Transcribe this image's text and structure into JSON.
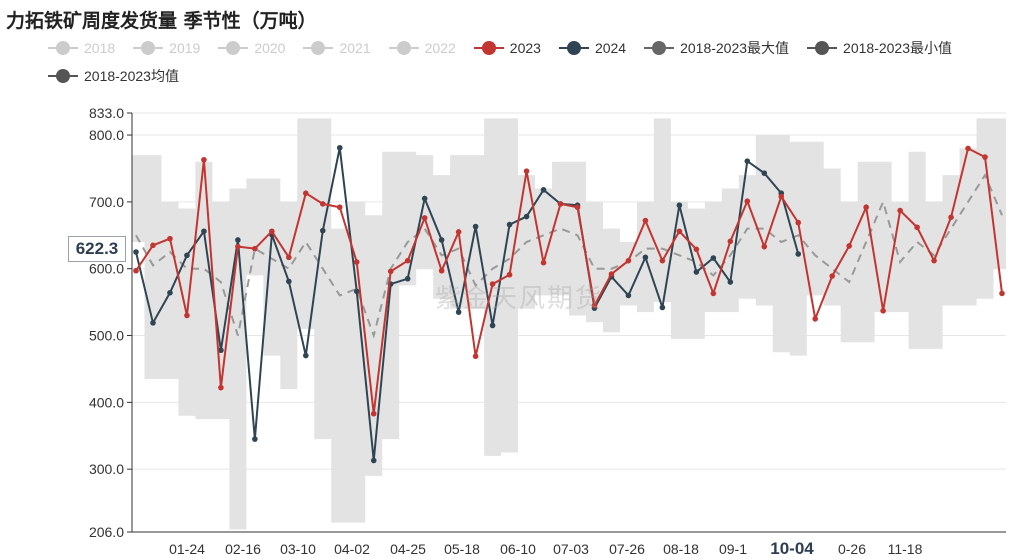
{
  "title": "力拓铁矿周度发货量 季节性（万吨）",
  "watermark": "紫金天风期货",
  "pointer_value": "622.3",
  "legend": [
    {
      "label": "2018",
      "color": "#cccccc",
      "active": false
    },
    {
      "label": "2019",
      "color": "#cccccc",
      "active": false
    },
    {
      "label": "2020",
      "color": "#cccccc",
      "active": false
    },
    {
      "label": "2021",
      "color": "#cccccc",
      "active": false
    },
    {
      "label": "2022",
      "color": "#cccccc",
      "active": false
    },
    {
      "label": "2023",
      "color": "#c23531",
      "active": true
    },
    {
      "label": "2024",
      "color": "#2f4554",
      "active": true
    },
    {
      "label": "2018-2023最大值",
      "color": "#666666",
      "active": true
    },
    {
      "label": "2018-2023最小值",
      "color": "#555555",
      "active": true
    },
    {
      "label": "2018-2023均值",
      "color": "#555555",
      "active": true
    }
  ],
  "chart_data": {
    "type": "line",
    "title": "力拓铁矿周度发货量 季节性（万吨）",
    "xlabel": "",
    "ylabel": "",
    "ylim": [
      206.0,
      833.0
    ],
    "yticks": [
      "206.0",
      "300.0",
      "400.0",
      "500.0",
      "600.0",
      "700.0",
      "800.0",
      "833.0"
    ],
    "x_tick_labels": [
      "01-24",
      "02-16",
      "03-10",
      "04-02",
      "04-25",
      "05-18",
      "06-10",
      "07-03",
      "07-26",
      "08-18",
      "09-1",
      "10-04",
      "0-26",
      "11-18"
    ],
    "highlight_tick": "10-04",
    "week_count": 52,
    "series": [
      {
        "name": "2023",
        "color": "#c23531",
        "values": [
          597,
          635,
          645,
          530,
          763,
          422,
          633,
          630,
          656,
          617,
          713,
          697,
          692,
          610,
          383,
          596,
          612,
          676,
          597,
          655,
          469,
          577,
          591,
          746,
          609,
          697,
          692,
          545,
          592,
          612,
          672,
          612,
          656,
          629,
          563,
          641,
          701,
          633,
          708,
          669,
          525,
          589,
          634,
          692,
          537,
          687,
          662,
          612,
          677,
          780,
          767,
          563
        ]
      },
      {
        "name": "2024",
        "color": "#2f4554",
        "values": [
          625,
          519,
          564,
          620,
          656,
          478,
          643,
          345,
          651,
          581,
          470,
          657,
          781,
          566,
          313,
          577,
          585,
          705,
          643,
          535,
          663,
          515,
          666,
          678,
          718,
          697,
          695,
          541,
          588,
          560,
          617,
          542,
          695,
          595,
          616,
          580,
          761,
          743,
          713,
          622
        ]
      },
      {
        "name": "2018-2023最大值",
        "color": "#e3e3e3",
        "values": [
          770,
          770,
          700,
          690,
          760,
          700,
          720,
          735,
          735,
          700,
          825,
          825,
          660,
          700,
          680,
          775,
          775,
          770,
          740,
          770,
          770,
          825,
          825,
          740,
          720,
          760,
          760,
          700,
          660,
          640,
          700,
          825,
          700,
          690,
          700,
          720,
          740,
          800,
          800,
          790,
          790,
          750,
          700,
          760,
          760,
          700,
          775,
          700,
          740,
          780,
          825,
          825
        ]
      },
      {
        "name": "2018-2023最小值",
        "color": "#e3e3e3",
        "values": [
          640,
          435,
          435,
          380,
          375,
          375,
          210,
          590,
          470,
          420,
          510,
          345,
          220,
          220,
          290,
          345,
          575,
          600,
          555,
          540,
          540,
          320,
          325,
          540,
          560,
          560,
          530,
          520,
          505,
          545,
          535,
          550,
          495,
          495,
          535,
          535,
          555,
          545,
          475,
          470,
          560,
          545,
          490,
          490,
          535,
          535,
          480,
          480,
          545,
          545,
          555,
          600
        ]
      },
      {
        "name": "2018-2023均值",
        "color": "#999999",
        "dashed": true,
        "values": [
          650,
          605,
          625,
          600,
          600,
          580,
          500,
          630,
          615,
          600,
          640,
          600,
          560,
          570,
          500,
          600,
          640,
          660,
          620,
          630,
          575,
          600,
          615,
          640,
          650,
          660,
          650,
          600,
          600,
          610,
          630,
          630,
          620,
          610,
          590,
          620,
          660,
          660,
          640,
          650,
          620,
          600,
          580,
          640,
          700,
          610,
          640,
          620,
          660,
          700,
          740,
          680
        ]
      }
    ]
  }
}
